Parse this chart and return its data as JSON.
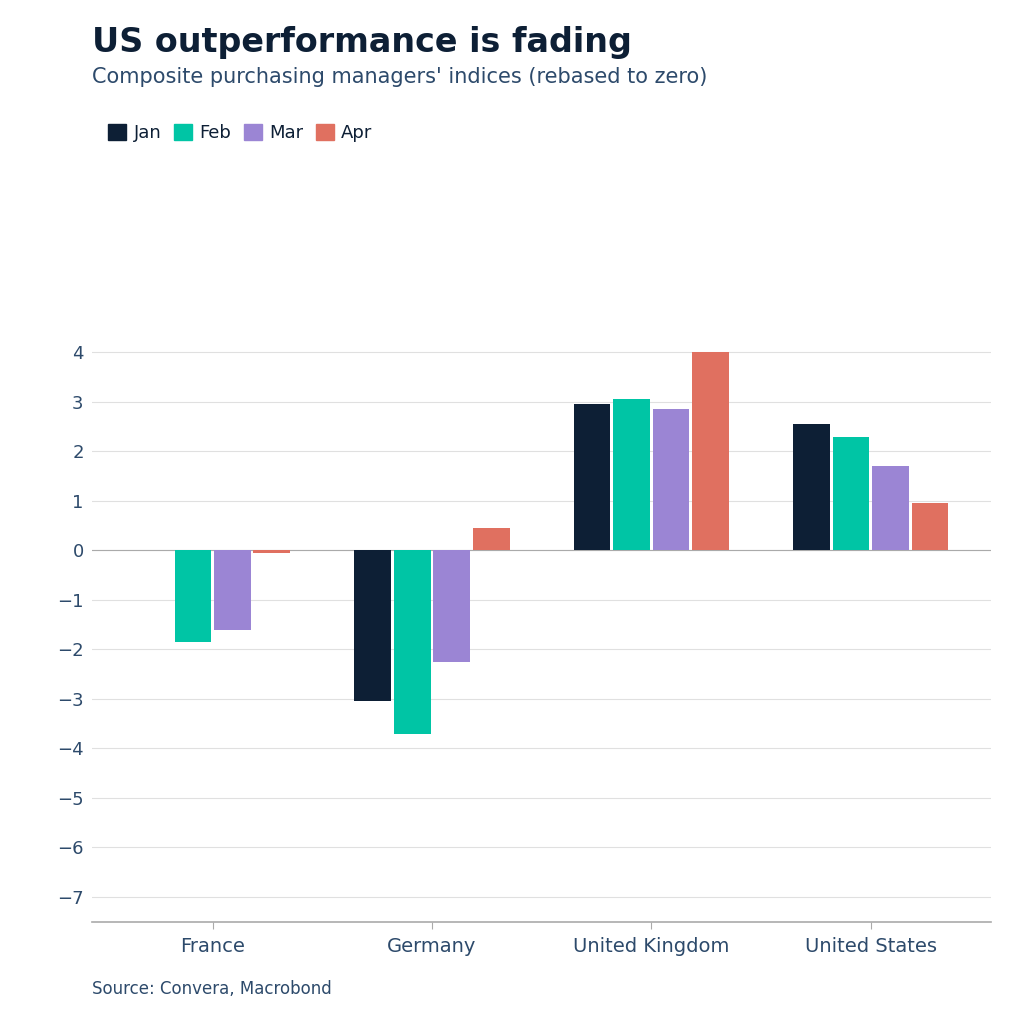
{
  "title": "US outperformance is fading",
  "subtitle": "Composite purchasing managers' indices (rebased to zero)",
  "source": "Source: Convera, Macrobond",
  "categories": [
    "France",
    "Germany",
    "United Kingdom",
    "United States"
  ],
  "months": [
    "Jan",
    "Feb",
    "Mar",
    "Apr"
  ],
  "colors": [
    "#0d1f35",
    "#00c5a5",
    "#9b85d4",
    "#e07060"
  ],
  "values": {
    "France": [
      0.0,
      -1.85,
      -1.6,
      -0.05
    ],
    "Germany": [
      -3.05,
      -3.7,
      -2.25,
      0.45
    ],
    "United Kingdom": [
      2.95,
      3.05,
      2.85,
      4.0
    ],
    "United States": [
      2.55,
      2.3,
      1.7,
      0.95
    ]
  },
  "ylim": [
    -7.5,
    4.5
  ],
  "yticks": [
    -7,
    -6,
    -5,
    -4,
    -3,
    -2,
    -1,
    0,
    1,
    2,
    3,
    4
  ],
  "background_color": "#ffffff",
  "title_color": "#0d1f35",
  "subtitle_color": "#2d4a6b",
  "tick_color": "#2d4a6b",
  "source_color": "#2d4a6b",
  "bar_width": 0.18,
  "title_fontsize": 24,
  "subtitle_fontsize": 15,
  "legend_fontsize": 13,
  "tick_fontsize": 13,
  "source_fontsize": 12
}
